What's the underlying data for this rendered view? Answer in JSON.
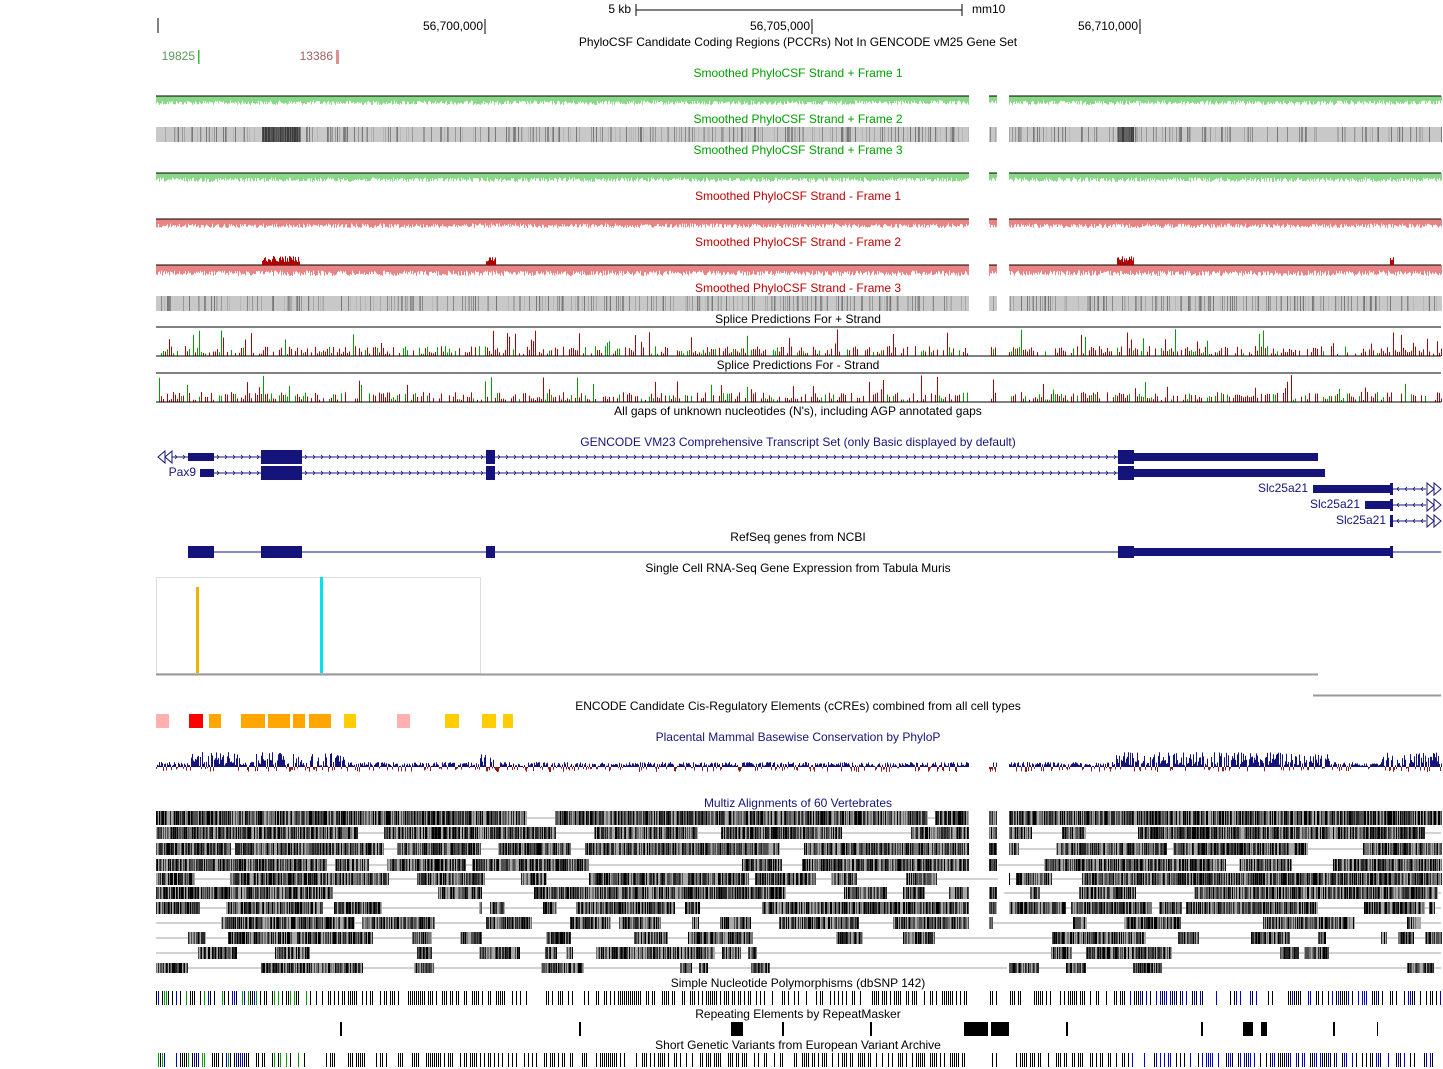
{
  "ruler": {
    "scale": "5 kb",
    "assembly": "mm10",
    "positions": [
      "56,700,000",
      "56,705,000",
      "56,710,000"
    ]
  },
  "pccr": {
    "title": "PhyloCSF Candidate Coding Regions (PCCRs)  Not In GENCODE vM25 Gene Set",
    "labels": [
      "19825",
      "13386"
    ]
  },
  "tracks": [
    "Smoothed PhyloCSF  Strand +  Frame 1",
    "Smoothed PhyloCSF  Strand +  Frame 2",
    "Smoothed PhyloCSF  Strand +  Frame 3",
    "Smoothed PhyloCSF  Strand -  Frame 1",
    "Smoothed PhyloCSF  Strand -  Frame 2",
    "Smoothed PhyloCSF  Strand -  Frame 3",
    "Splice Predictions For + Strand",
    "Splice Predictions For - Strand",
    "All gaps of unknown nucleotides (N's), including AGP annotated gaps",
    "GENCODE VM23 Comprehensive Transcript Set (only Basic displayed by default)",
    "RefSeq genes from NCBI",
    "Single Cell RNA-Seq Gene Expression from Tabula Muris",
    "ENCODE Candidate Cis-Regulatory Elements (cCREs) combined from all cell types",
    "Placental Mammal Basewise Conservation by PhyloP",
    "Multiz Alignments of 60 Vertebrates",
    "Simple Nucleotide Polymorphisms (dbSNP 142)",
    "Repeating Elements by RepeatMasker",
    "Short Genetic Variants from European Variant Archive"
  ],
  "genes": [
    "Pax9",
    "Slc25a21",
    "Slc25a21",
    "Slc25a21"
  ]
}
